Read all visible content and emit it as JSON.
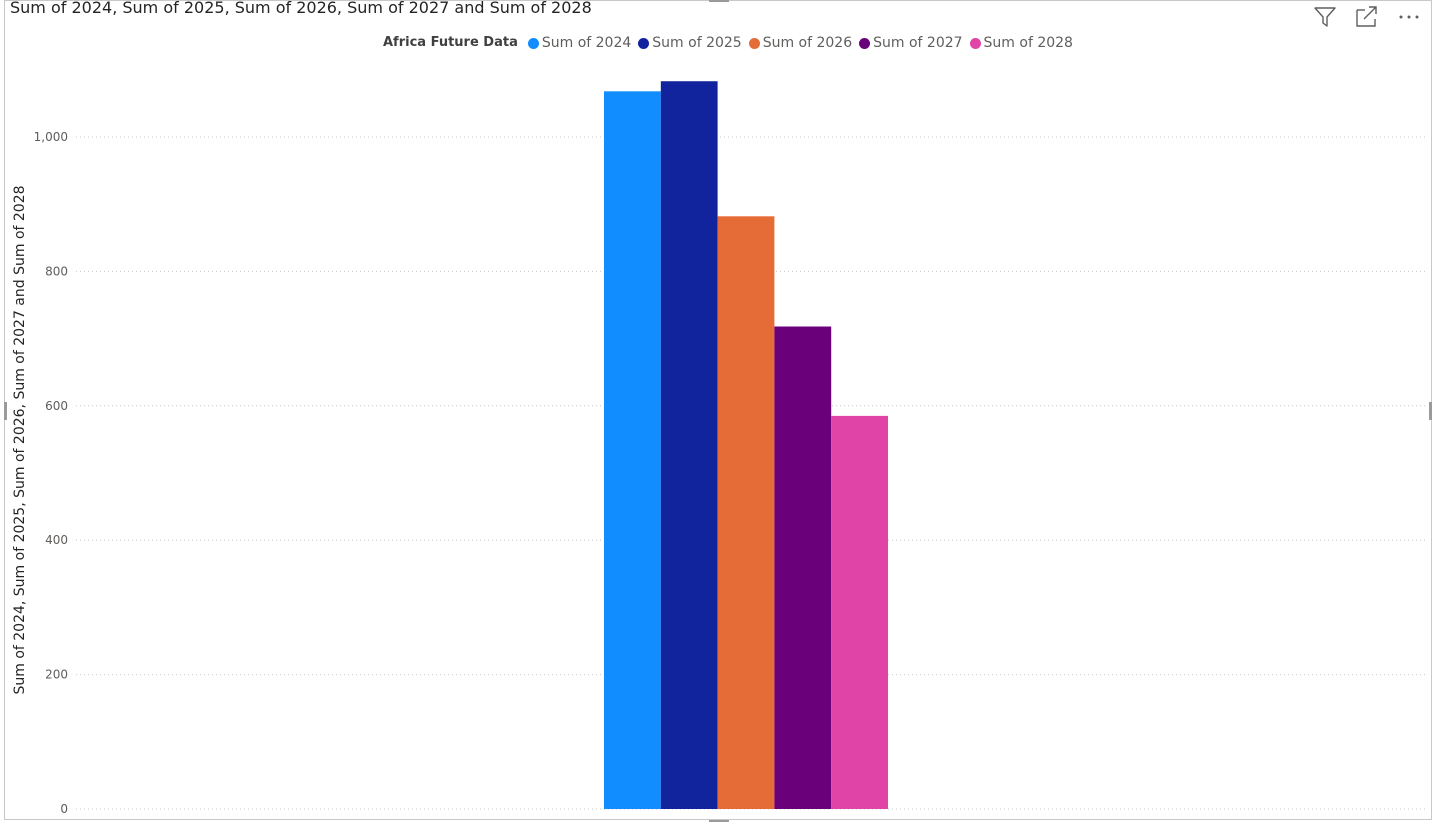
{
  "visual": {
    "title": "Sum of 2024, Sum of 2025, Sum of 2026, Sum of 2027 and Sum of 2028"
  },
  "toolbar": {
    "filter_icon": "filter-icon",
    "focus_icon": "focus-mode-icon",
    "more_icon": "more-options-icon"
  },
  "legend": {
    "title": "Africa Future Data",
    "items": [
      {
        "label": "Sum of 2024",
        "color": "#118DFF"
      },
      {
        "label": "Sum of 2025",
        "color": "#12239E"
      },
      {
        "label": "Sum of 2026",
        "color": "#E66C37"
      },
      {
        "label": "Sum of 2027",
        "color": "#6B007B"
      },
      {
        "label": "Sum of 2028",
        "color": "#E044A7"
      }
    ]
  },
  "chart_data": {
    "type": "bar",
    "title": "Sum of 2024, Sum of 2025, Sum of 2026, Sum of 2027 and Sum of 2028",
    "ylabel": "Sum of 2024, Sum of 2025, Sum of 2026, Sum of 2027 and Sum of 2028",
    "xlabel": "",
    "ylim": [
      0,
      1000
    ],
    "yticks": [
      "0",
      "200",
      "400",
      "600",
      "800",
      "1,000"
    ],
    "ytick_values": [
      0,
      200,
      400,
      600,
      800,
      1000
    ],
    "grid": true,
    "legend_position": "top-center",
    "categories": [
      ""
    ],
    "series": [
      {
        "name": "Sum of 2024",
        "values": [
          1068
        ],
        "color": "#118DFF"
      },
      {
        "name": "Sum of 2025",
        "values": [
          1083
        ],
        "color": "#12239E"
      },
      {
        "name": "Sum of 2026",
        "values": [
          882
        ],
        "color": "#E66C37"
      },
      {
        "name": "Sum of 2027",
        "values": [
          718
        ],
        "color": "#6B007B"
      },
      {
        "name": "Sum of 2028",
        "values": [
          585
        ],
        "color": "#E044A7"
      }
    ]
  }
}
